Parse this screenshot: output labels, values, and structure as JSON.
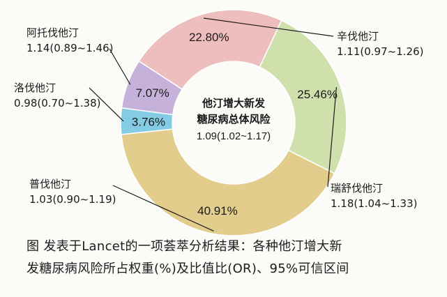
{
  "chart_data": {
    "type": "pie",
    "style": "donut",
    "title": "",
    "center_label": {
      "line1": "他汀增大新发",
      "line2": "糖尿病总体风险",
      "line3": "1.09(1.02~1.17)"
    },
    "slices": [
      {
        "name": "辛伐他汀",
        "value": 22.8,
        "pct_label": "22.80%",
        "or_label": "1.11(0.97~1.26)",
        "color": "#eebdbd"
      },
      {
        "name": "瑞舒伐他汀",
        "value": 25.46,
        "pct_label": "25.46%",
        "or_label": "1.18(1.04~1.33)",
        "color": "#cfe0ad"
      },
      {
        "name": "普伐他汀",
        "value": 40.91,
        "pct_label": "40.91%",
        "or_label": "1.03(0.90~1.19)",
        "color": "#e3cd8c"
      },
      {
        "name": "洛伐他汀",
        "value": 3.76,
        "pct_label": "3.76%",
        "or_label": "0.98(0.70~1.38)",
        "color": "#84cbe4"
      },
      {
        "name": "阿托伐他汀",
        "value": 7.07,
        "pct_label": "7.07%",
        "or_label": "1.14(0.89~1.46)",
        "color": "#c5b1da"
      }
    ]
  },
  "caption": {
    "line1": "图  发表于Lancet的一项荟萃分析结果：各种他汀增大新",
    "line2": "发糖尿病风险所占权重(%)及比值比(OR)、95%可信区间"
  }
}
